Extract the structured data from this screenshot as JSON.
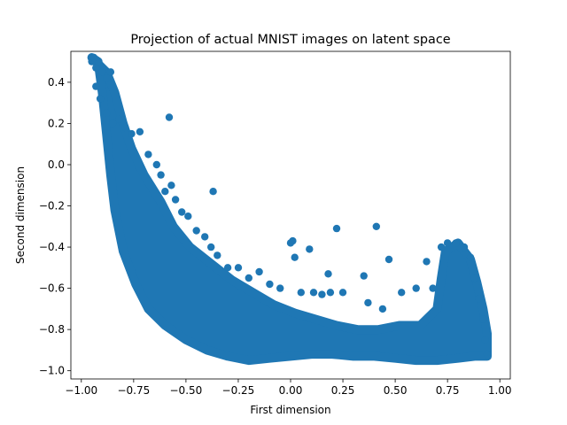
{
  "chart_data": {
    "type": "scatter",
    "title": "Projection of actual MNIST images on latent space",
    "xlabel": "First dimension",
    "ylabel": "Second dimension",
    "xlim": [
      -1.05,
      1.05
    ],
    "ylim": [
      -1.04,
      0.55
    ],
    "xticks": [
      -1.0,
      -0.75,
      -0.5,
      -0.25,
      0.0,
      0.25,
      0.5,
      0.75,
      1.0
    ],
    "xtick_labels": [
      "−1.00",
      "−0.75",
      "−0.50",
      "−0.25",
      "0.00",
      "0.25",
      "0.50",
      "0.75",
      "1.00"
    ],
    "yticks": [
      -1.0,
      -0.8,
      -0.6,
      -0.4,
      -0.2,
      0.0,
      0.2,
      0.4
    ],
    "ytick_labels": [
      "−1.0",
      "−0.8",
      "−0.6",
      "−0.4",
      "−0.2",
      "0.0",
      "0.2",
      "0.4"
    ],
    "grid": false,
    "marker_color": "#1f77b4",
    "points": [
      [
        -0.95,
        0.5
      ],
      [
        -0.94,
        0.52
      ],
      [
        -0.93,
        0.47
      ],
      [
        -0.9,
        0.45
      ],
      [
        -0.88,
        0.42
      ],
      [
        -0.86,
        0.45
      ],
      [
        -0.93,
        0.38
      ],
      [
        -0.91,
        0.32
      ],
      [
        -0.88,
        0.25
      ],
      [
        -0.85,
        0.2
      ],
      [
        -0.82,
        0.22
      ],
      [
        -0.79,
        0.18
      ],
      [
        -0.76,
        0.15
      ],
      [
        -0.72,
        0.16
      ],
      [
        -0.68,
        0.05
      ],
      [
        -0.64,
        0.0
      ],
      [
        -0.58,
        0.23
      ],
      [
        -0.62,
        -0.05
      ],
      [
        -0.6,
        -0.13
      ],
      [
        -0.57,
        -0.1
      ],
      [
        -0.55,
        -0.17
      ],
      [
        -0.52,
        -0.23
      ],
      [
        -0.49,
        -0.25
      ],
      [
        -0.45,
        -0.32
      ],
      [
        -0.41,
        -0.35
      ],
      [
        -0.37,
        -0.13
      ],
      [
        -0.38,
        -0.4
      ],
      [
        -0.35,
        -0.44
      ],
      [
        -0.3,
        -0.5
      ],
      [
        -0.25,
        -0.5
      ],
      [
        -0.2,
        -0.55
      ],
      [
        -0.15,
        -0.52
      ],
      [
        -0.1,
        -0.58
      ],
      [
        -0.05,
        -0.6
      ],
      [
        0.0,
        -0.38
      ],
      [
        0.01,
        -0.37
      ],
      [
        0.02,
        -0.45
      ],
      [
        0.05,
        -0.62
      ],
      [
        0.09,
        -0.41
      ],
      [
        0.11,
        -0.62
      ],
      [
        0.15,
        -0.63
      ],
      [
        0.18,
        -0.53
      ],
      [
        0.19,
        -0.62
      ],
      [
        0.22,
        -0.31
      ],
      [
        0.25,
        -0.62
      ],
      [
        0.35,
        -0.54
      ],
      [
        0.37,
        -0.67
      ],
      [
        0.41,
        -0.3
      ],
      [
        0.44,
        -0.7
      ],
      [
        0.47,
        -0.46
      ],
      [
        0.53,
        -0.62
      ],
      [
        0.6,
        -0.6
      ],
      [
        0.65,
        -0.47
      ],
      [
        0.68,
        -0.6
      ],
      [
        0.72,
        -0.4
      ],
      [
        0.75,
        -0.38
      ],
      [
        0.79,
        -0.38
      ],
      [
        0.83,
        -0.4
      ],
      [
        0.86,
        -0.45
      ],
      [
        0.88,
        -0.55
      ],
      [
        0.9,
        -0.65
      ],
      [
        0.92,
        -0.75
      ],
      [
        0.93,
        -0.85
      ],
      [
        0.94,
        -0.92
      ]
    ]
  }
}
